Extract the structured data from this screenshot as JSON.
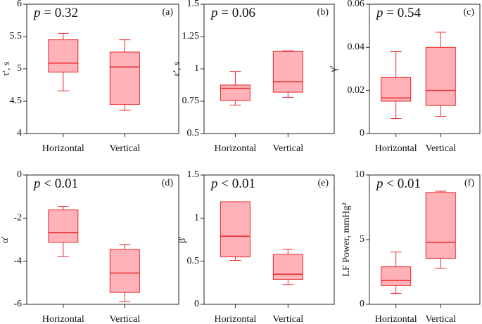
{
  "chart_data": [
    {
      "type": "box",
      "annotation": "p = 0.32",
      "panel_label": "(a)",
      "ylabel": "τ', s",
      "categories": [
        "Horizontal",
        "Vertical"
      ],
      "boxes": [
        {
          "whisker_low": 4.66,
          "q1": 4.95,
          "median": 5.09,
          "q3": 5.45,
          "whisker_high": 5.55
        },
        {
          "whisker_low": 4.36,
          "q1": 4.45,
          "median": 5.03,
          "q3": 5.26,
          "whisker_high": 5.45
        }
      ],
      "color": "#e8262b",
      "fill": "#ffb3b8",
      "ylim": [
        4,
        6
      ],
      "yticks": [
        4,
        4.5,
        5,
        5.5,
        6
      ]
    },
    {
      "type": "box",
      "annotation": "p = 0.06",
      "panel_label": "(b)",
      "ylabel": "ε', s",
      "categories": [
        "Horizontal",
        "Vertical"
      ],
      "boxes": [
        {
          "whisker_low": 0.72,
          "q1": 0.755,
          "median": 0.85,
          "q3": 0.875,
          "whisker_high": 0.98
        },
        {
          "whisker_low": 0.78,
          "q1": 0.82,
          "median": 0.9,
          "q3": 1.135,
          "whisker_high": 1.14
        }
      ],
      "color": "#e8262b",
      "fill": "#ffb3b8",
      "ylim": [
        0.5,
        1.5
      ],
      "yticks": [
        0.5,
        0.75,
        1,
        1.25,
        1.5
      ]
    },
    {
      "type": "box",
      "annotation": "p = 0.54",
      "panel_label": "(c)",
      "ylabel": "γ'",
      "categories": [
        "Horizontal",
        "Vertical"
      ],
      "boxes": [
        {
          "whisker_low": 0.007,
          "q1": 0.015,
          "median": 0.0165,
          "q3": 0.026,
          "whisker_high": 0.038
        },
        {
          "whisker_low": 0.008,
          "q1": 0.013,
          "median": 0.02,
          "q3": 0.04,
          "whisker_high": 0.047
        }
      ],
      "color": "#e8262b",
      "fill": "#ffb3b8",
      "ylim": [
        0,
        0.06
      ],
      "yticks": [
        0,
        0.02,
        0.04,
        0.06
      ]
    },
    {
      "type": "box",
      "annotation": "p < 0.01",
      "panel_label": "(d)",
      "ylabel": "α'",
      "categories": [
        "Horizontal",
        "Vertical"
      ],
      "boxes": [
        {
          "whisker_low": -3.78,
          "q1": -3.12,
          "median": -2.67,
          "q3": -1.62,
          "whisker_high": -1.45
        },
        {
          "whisker_low": -5.88,
          "q1": -5.45,
          "median": -4.55,
          "q3": -3.45,
          "whisker_high": -3.22
        }
      ],
      "color": "#e8262b",
      "fill": "#ffb3b8",
      "ylim": [
        -6,
        0
      ],
      "yticks": [
        -6,
        -4,
        -2,
        0
      ]
    },
    {
      "type": "box",
      "annotation": "p < 0.01",
      "panel_label": "(e)",
      "ylabel": "β'",
      "categories": [
        "Horizontal",
        "Vertical"
      ],
      "boxes": [
        {
          "whisker_low": 0.51,
          "q1": 0.55,
          "median": 0.79,
          "q3": 1.19,
          "whisker_high": 1.19
        },
        {
          "whisker_low": 0.23,
          "q1": 0.29,
          "median": 0.35,
          "q3": 0.58,
          "whisker_high": 0.64
        }
      ],
      "color": "#e8262b",
      "fill": "#ffb3b8",
      "ylim": [
        0,
        1.5
      ],
      "yticks": [
        0,
        0.5,
        1,
        1.5
      ]
    },
    {
      "type": "box",
      "annotation": "p < 0.01",
      "panel_label": "(f)",
      "ylabel": "LF Power, mmHg²",
      "categories": [
        "Horizontal",
        "Vertical"
      ],
      "boxes": [
        {
          "whisker_low": 0.85,
          "q1": 1.45,
          "median": 1.85,
          "q3": 2.9,
          "whisker_high": 4.05
        },
        {
          "whisker_low": 2.8,
          "q1": 3.55,
          "median": 4.8,
          "q3": 8.65,
          "whisker_high": 8.75
        }
      ],
      "color": "#e8262b",
      "fill": "#ffb3b8",
      "ylim": [
        0,
        10
      ],
      "yticks": [
        0,
        5,
        10
      ]
    }
  ]
}
